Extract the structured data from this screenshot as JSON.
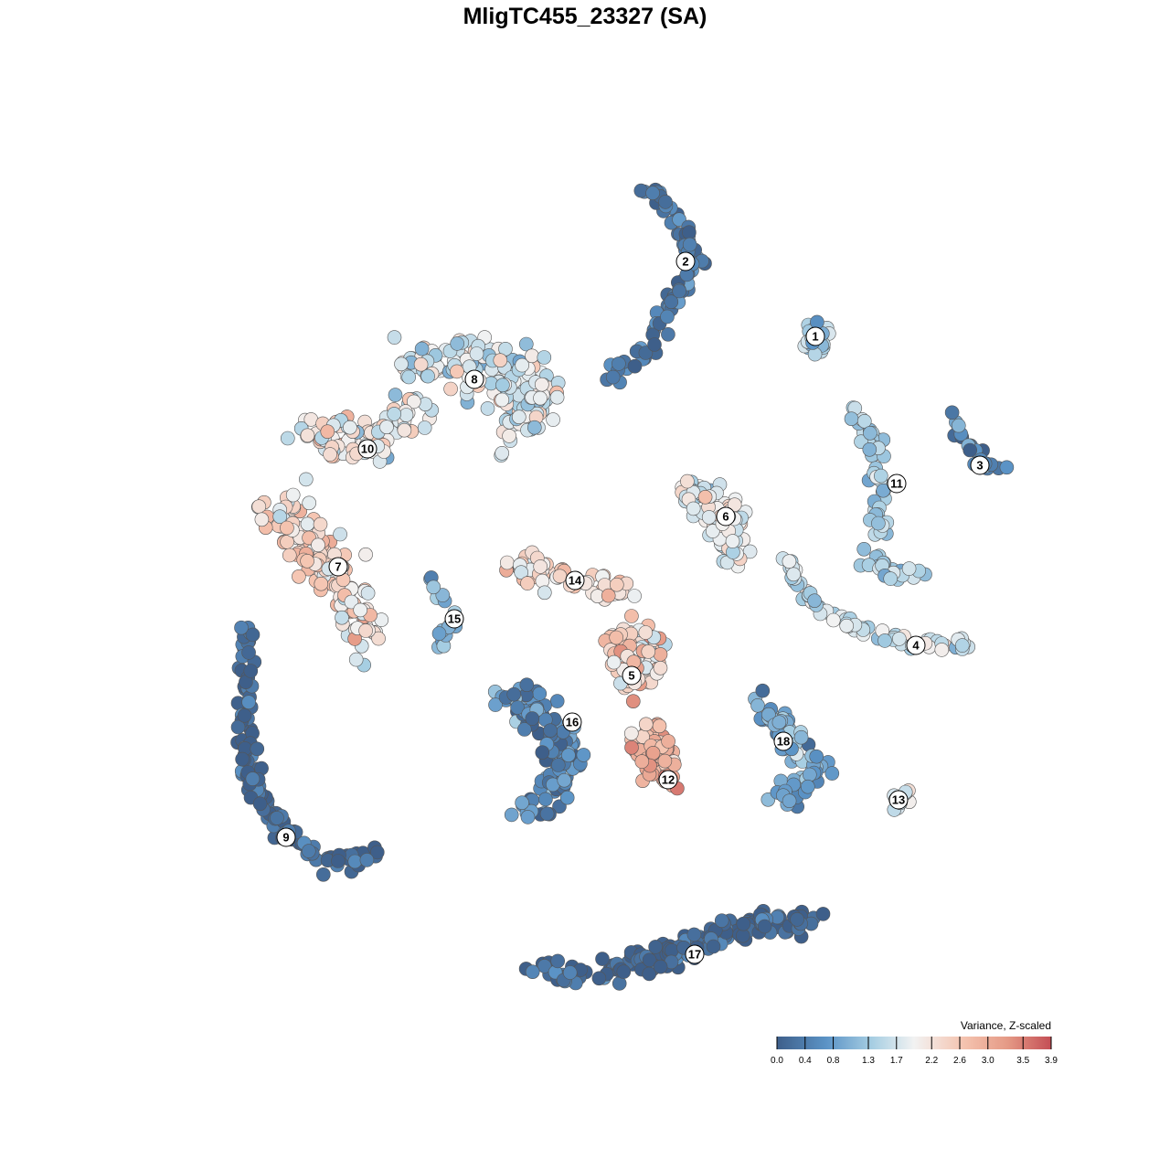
{
  "chart_data": {
    "type": "scatter",
    "title": "MligTC455_23327 (SA)",
    "legend": {
      "title": "Variance, Z-scaled",
      "ticks": [
        "0.0",
        "0.4",
        "0.8",
        "1.3",
        "1.7",
        "2.2",
        "2.6",
        "3.0",
        "3.5",
        "3.9"
      ],
      "range": [
        0.0,
        3.9
      ],
      "colors": [
        "#3e5f8a",
        "#5b93c6",
        "#a8cfe3",
        "#f2f2f2",
        "#f5c4b0",
        "#e59a86",
        "#c44e55"
      ],
      "placement": "bottom-right"
    },
    "axes": {
      "visible": false,
      "grid": false
    },
    "clusters": [
      {
        "label": "1",
        "mean_value": 1.2
      },
      {
        "label": "2",
        "mean_value": 0.3
      },
      {
        "label": "3",
        "mean_value": 0.5
      },
      {
        "label": "4",
        "mean_value": 1.6
      },
      {
        "label": "5",
        "mean_value": 2.4
      },
      {
        "label": "6",
        "mean_value": 1.9
      },
      {
        "label": "7",
        "mean_value": 2.2
      },
      {
        "label": "8",
        "mean_value": 1.7
      },
      {
        "label": "9",
        "mean_value": 0.1
      },
      {
        "label": "10",
        "mean_value": 2.0
      },
      {
        "label": "11",
        "mean_value": 1.3
      },
      {
        "label": "12",
        "mean_value": 3.0
      },
      {
        "label": "13",
        "mean_value": 1.8
      },
      {
        "label": "14",
        "mean_value": 2.3
      },
      {
        "label": "15",
        "mean_value": 1.0
      },
      {
        "label": "16",
        "mean_value": 0.5
      },
      {
        "label": "17",
        "mean_value": 0.05
      },
      {
        "label": "18",
        "mean_value": 0.9
      }
    ]
  }
}
